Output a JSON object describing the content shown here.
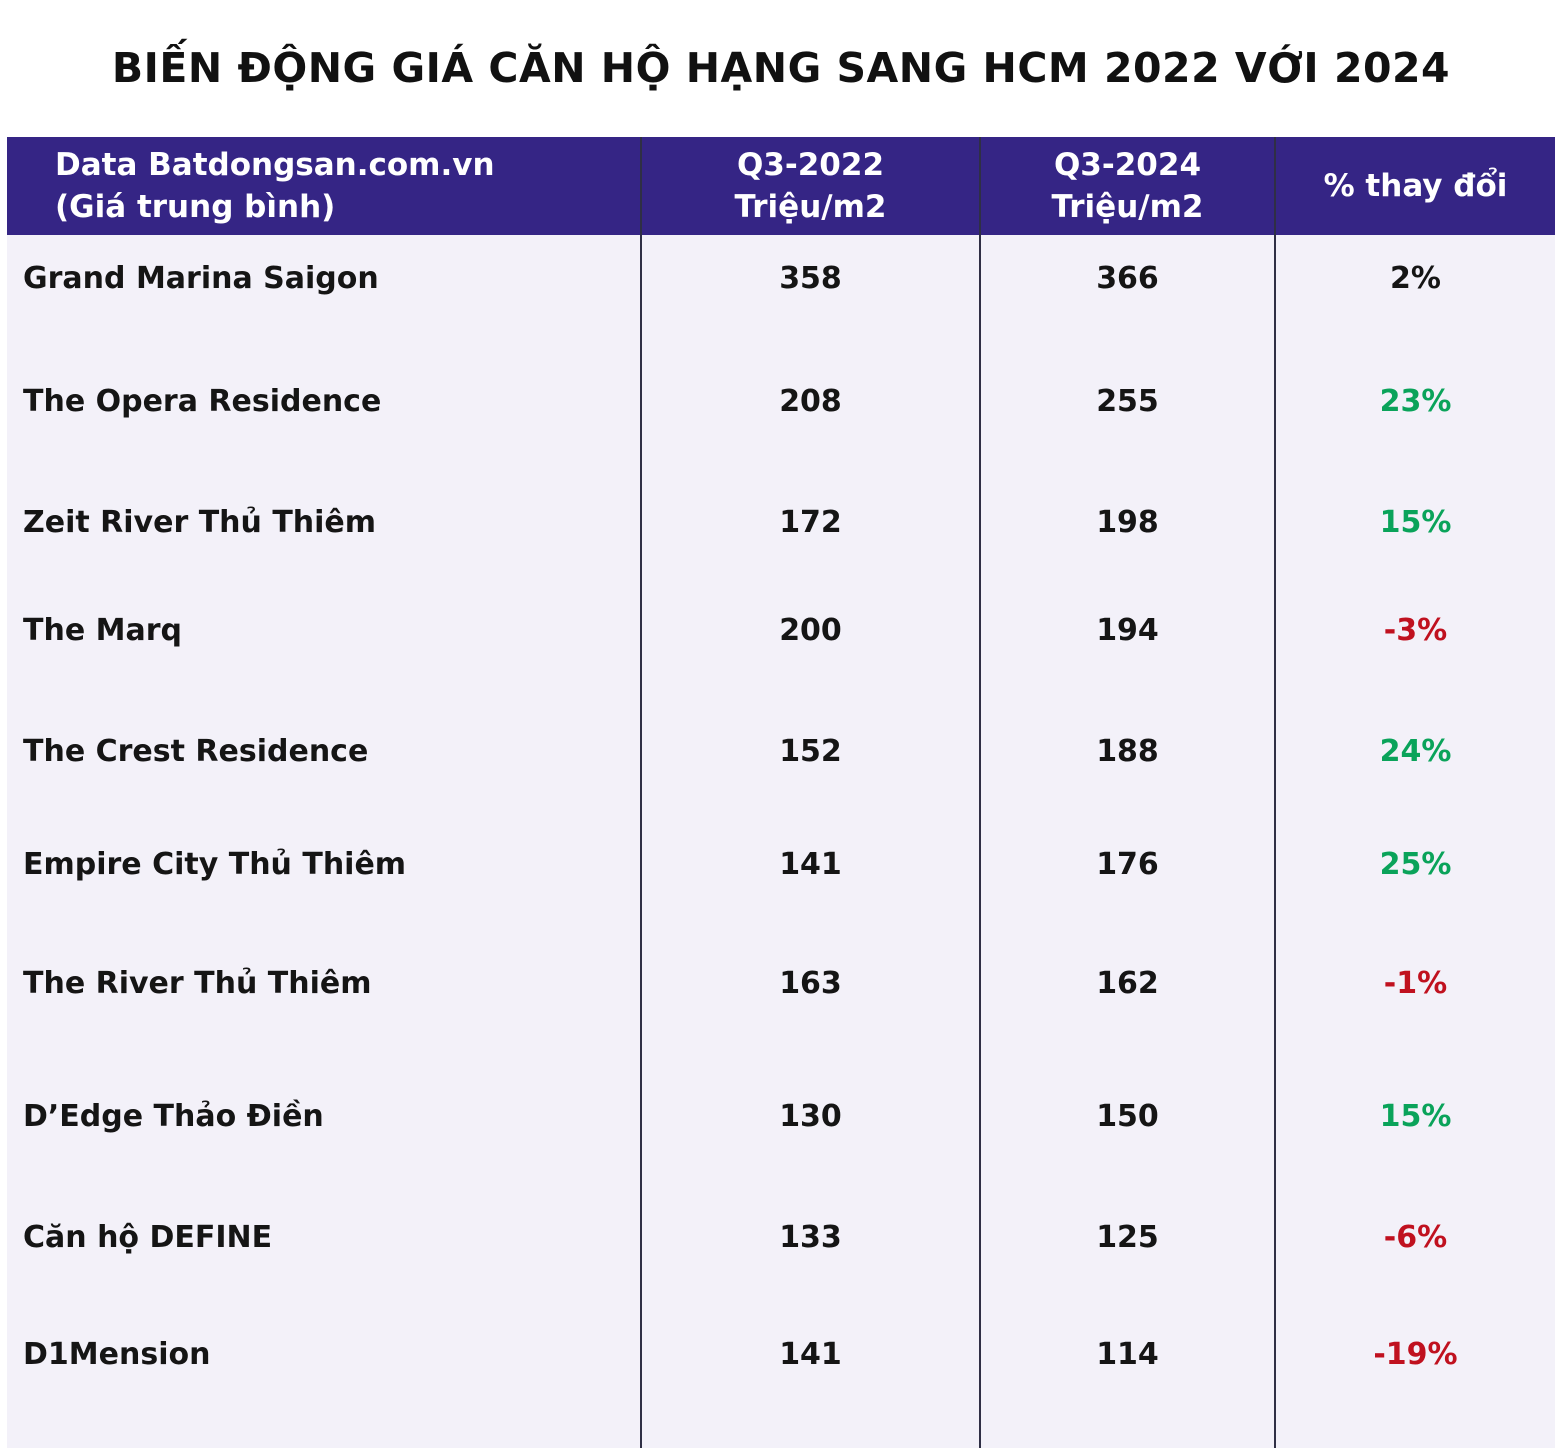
{
  "title": "BIẾN ĐỘNG GIÁ CĂN HỘ HẠNG SANG HCM 2022 VỚI 2024",
  "colors": {
    "header_bg": "#352585",
    "body_bg": "#f3f1f9",
    "positive": "#0aa35a",
    "negative": "#c0111f",
    "neutral": "#151515"
  },
  "chart_data": {
    "type": "table",
    "title": "BIẾN ĐỘNG GIÁ CĂN HỘ HẠNG SANG HCM 2022 VỚI 2024",
    "columns": [
      [
        "Data Batdongsan.com.vn",
        "(Giá trung bình)"
      ],
      [
        "Q3-2022",
        "Triệu/m2"
      ],
      [
        "Q3-2024",
        "Triệu/m2"
      ],
      [
        "% thay đổi"
      ]
    ],
    "rows": [
      {
        "name": "Grand Marina Saigon",
        "q3_2022": "358",
        "q3_2024": "366",
        "change": "2%",
        "trend": "neutral"
      },
      {
        "name": "The Opera Residence",
        "q3_2022": "208",
        "q3_2024": "255",
        "change": "23%",
        "trend": "positive"
      },
      {
        "name": "Zeit River Thủ Thiêm",
        "q3_2022": "172",
        "q3_2024": "198",
        "change": "15%",
        "trend": "positive"
      },
      {
        "name": "The Marq",
        "q3_2022": "200",
        "q3_2024": "194",
        "change": "-3%",
        "trend": "negative"
      },
      {
        "name": "The Crest Residence",
        "q3_2022": "152",
        "q3_2024": "188",
        "change": "24%",
        "trend": "positive"
      },
      {
        "name": "Empire City Thủ Thiêm",
        "q3_2022": "141",
        "q3_2024": "176",
        "change": "25%",
        "trend": "positive"
      },
      {
        "name": "The River Thủ Thiêm",
        "q3_2022": "163",
        "q3_2024": "162",
        "change": "-1%",
        "trend": "negative"
      },
      {
        "name": "D’Edge Thảo Điền",
        "q3_2022": "130",
        "q3_2024": "150",
        "change": "15%",
        "trend": "positive"
      },
      {
        "name": "Căn hộ DEFINE",
        "q3_2022": "133",
        "q3_2024": "125",
        "change": "-6%",
        "trend": "negative"
      },
      {
        "name": "D1Mension",
        "q3_2022": "141",
        "q3_2024": "114",
        "change": "-19%",
        "trend": "negative"
      }
    ]
  }
}
